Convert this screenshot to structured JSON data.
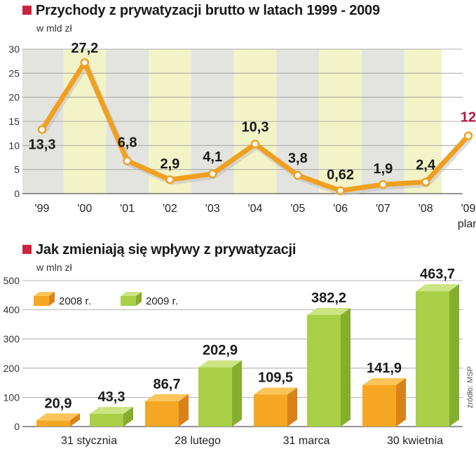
{
  "colors": {
    "accent_square": "#c8243f",
    "line": "#f0a020",
    "highlight_label": "#c0123a",
    "band_grey": "#e3e3df",
    "band_yellow": "#f3f3c8",
    "bar_2008": "#f5a623",
    "bar_2009": "#a8cf45"
  },
  "chart1": {
    "title": "Przychody z prywatyzacji brutto w latach 1999 - 2009",
    "unit": "w mld zł",
    "plan_label": "plan"
  },
  "chart2": {
    "title": "Jak zmieniają się wpływy z prywatyzacji",
    "unit": "w mln zł",
    "legend": [
      "2008 r.",
      "2009 r."
    ]
  },
  "source": "źródło: MSP",
  "chart_data": [
    {
      "type": "line",
      "title": "Przychody z prywatyzacji brutto w latach 1999 - 2009",
      "ylabel": "w mld zł",
      "ylim": [
        0,
        30
      ],
      "yticks": [
        0,
        5,
        10,
        15,
        20,
        25,
        30
      ],
      "categories": [
        "'99",
        "'00",
        "'01",
        "'02",
        "'03",
        "'04",
        "'05",
        "'06",
        "'07",
        "'08",
        "'09"
      ],
      "value_labels": [
        "13,3",
        "27,2",
        "6,8",
        "2,9",
        "4,1",
        "10,3",
        "3,8",
        "0,62",
        "1,9",
        "2,4",
        "12"
      ],
      "values": [
        13.3,
        27.2,
        6.8,
        2.9,
        4.1,
        10.3,
        3.8,
        0.62,
        1.9,
        2.4,
        12
      ],
      "annotations": [
        {
          "category": "'09",
          "text": "plan"
        }
      ],
      "grid": true
    },
    {
      "type": "bar",
      "title": "Jak zmieniają się wpływy z prywatyzacji",
      "ylabel": "w mln zł",
      "ylim": [
        0,
        500
      ],
      "yticks": [
        0,
        100,
        200,
        300,
        400,
        500
      ],
      "categories": [
        "31 stycznia",
        "28 lutego",
        "31 marca",
        "30 kwietnia"
      ],
      "series": [
        {
          "name": "2008 r.",
          "values": [
            20.9,
            86.7,
            109.5,
            141.9
          ],
          "labels": [
            "20,9",
            "86,7",
            "109,5",
            "141,9"
          ]
        },
        {
          "name": "2009 r.",
          "values": [
            43.3,
            202.9,
            382.2,
            463.7
          ],
          "labels": [
            "43,3",
            "202,9",
            "382,2",
            "463,7"
          ]
        }
      ],
      "legend_position": "top-left",
      "grid": true
    }
  ]
}
